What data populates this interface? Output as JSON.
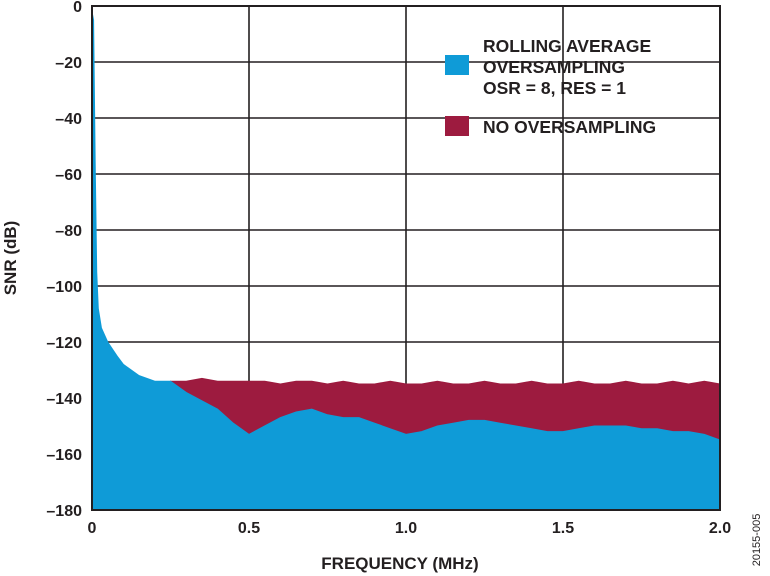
{
  "chart_data": {
    "type": "area",
    "title": "",
    "xlabel": "FREQUENCY (MHz)",
    "ylabel": "SNR (dB)",
    "xlim": [
      0,
      2.0
    ],
    "ylim": [
      -180,
      0
    ],
    "xticks": [
      0,
      0.5,
      1.0,
      1.5,
      2.0
    ],
    "xtick_labels": [
      "0",
      "0.5",
      "1.0",
      "1.5",
      "2.0"
    ],
    "yticks": [
      0,
      -20,
      -40,
      -60,
      -80,
      -100,
      -120,
      -140,
      -160,
      -180
    ],
    "ytick_labels": [
      "0",
      "–20",
      "–40",
      "–60",
      "–80",
      "–100",
      "–120",
      "–140",
      "–160",
      "–180"
    ],
    "grid": true,
    "legend_position": "top-right",
    "figure_id": "20155-005",
    "series": [
      {
        "name": "ROLLING AVERAGE OVERSAMPLING OSR = 8, RES = 1",
        "legend_lines": [
          "ROLLING AVERAGE",
          "OVERSAMPLING",
          "OSR = 8, RES = 1"
        ],
        "color": "#0f9bd7",
        "x": [
          0,
          0.005,
          0.01,
          0.015,
          0.02,
          0.03,
          0.05,
          0.08,
          0.1,
          0.15,
          0.2,
          0.25,
          0.3,
          0.35,
          0.4,
          0.45,
          0.5,
          0.55,
          0.6,
          0.65,
          0.7,
          0.75,
          0.8,
          0.85,
          0.9,
          0.95,
          1.0,
          1.05,
          1.1,
          1.15,
          1.2,
          1.25,
          1.3,
          1.35,
          1.4,
          1.45,
          1.5,
          1.55,
          1.6,
          1.65,
          1.7,
          1.75,
          1.8,
          1.85,
          1.9,
          1.95,
          2.0
        ],
        "values": [
          -2,
          -5,
          -55,
          -95,
          -108,
          -115,
          -120,
          -125,
          -128,
          -132,
          -134,
          -134,
          -138,
          -141,
          -144,
          -149,
          -153,
          -150,
          -147,
          -145,
          -144,
          -146,
          -147,
          -147,
          -149,
          -151,
          -153,
          -152,
          -150,
          -149,
          -148,
          -148,
          -149,
          -150,
          -151,
          -152,
          -152,
          -151,
          -150,
          -150,
          -150,
          -151,
          -151,
          -152,
          -152,
          -153,
          -155
        ]
      },
      {
        "name": "NO OVERSAMPLING",
        "legend_lines": [
          "NO OVERSAMPLING"
        ],
        "color": "#9d1b3f",
        "x": [
          0.25,
          0.3,
          0.35,
          0.4,
          0.45,
          0.5,
          0.55,
          0.6,
          0.65,
          0.7,
          0.75,
          0.8,
          0.85,
          0.9,
          0.95,
          1.0,
          1.05,
          1.1,
          1.15,
          1.2,
          1.25,
          1.3,
          1.35,
          1.4,
          1.45,
          1.5,
          1.55,
          1.6,
          1.65,
          1.7,
          1.75,
          1.8,
          1.85,
          1.9,
          1.95,
          2.0
        ],
        "values": [
          -134,
          -134,
          -133,
          -134,
          -134,
          -134,
          -134,
          -135,
          -134,
          -134,
          -135,
          -134,
          -135,
          -135,
          -134,
          -135,
          -135,
          -134,
          -135,
          -135,
          -134,
          -135,
          -135,
          -134,
          -135,
          -135,
          -134,
          -135,
          -135,
          -134,
          -135,
          -135,
          -134,
          -135,
          -134,
          -135
        ]
      }
    ]
  }
}
